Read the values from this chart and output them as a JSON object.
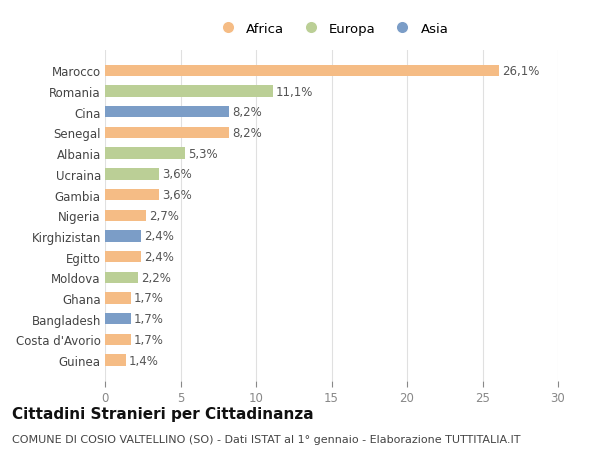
{
  "title": "Cittadini Stranieri per Cittadinanza",
  "subtitle": "COMUNE DI COSIO VALTELLINO (SO) - Dati ISTAT al 1° gennaio - Elaborazione TUTTITALIA.IT",
  "categories": [
    "Marocco",
    "Romania",
    "Cina",
    "Senegal",
    "Albania",
    "Ucraina",
    "Gambia",
    "Nigeria",
    "Kirghizistan",
    "Egitto",
    "Moldova",
    "Ghana",
    "Bangladesh",
    "Costa d'Avorio",
    "Guinea"
  ],
  "values": [
    26.1,
    11.1,
    8.2,
    8.2,
    5.3,
    3.6,
    3.6,
    2.7,
    2.4,
    2.4,
    2.2,
    1.7,
    1.7,
    1.7,
    1.4
  ],
  "continents": [
    "Africa",
    "Europa",
    "Asia",
    "Africa",
    "Europa",
    "Europa",
    "Africa",
    "Africa",
    "Asia",
    "Africa",
    "Europa",
    "Africa",
    "Asia",
    "Africa",
    "Africa"
  ],
  "colors": {
    "Africa": "#F5BC85",
    "Europa": "#BBCF96",
    "Asia": "#7B9DC7"
  },
  "legend_order": [
    "Africa",
    "Europa",
    "Asia"
  ],
  "xlim": [
    0,
    30
  ],
  "xticks": [
    0,
    5,
    10,
    15,
    20,
    25,
    30
  ],
  "bar_height": 0.55,
  "background_color": "#ffffff",
  "grid_color": "#e0e0e0",
  "label_color": "#555555",
  "tick_color": "#888888",
  "label_fontsize": 8.5,
  "title_fontsize": 11,
  "subtitle_fontsize": 8
}
